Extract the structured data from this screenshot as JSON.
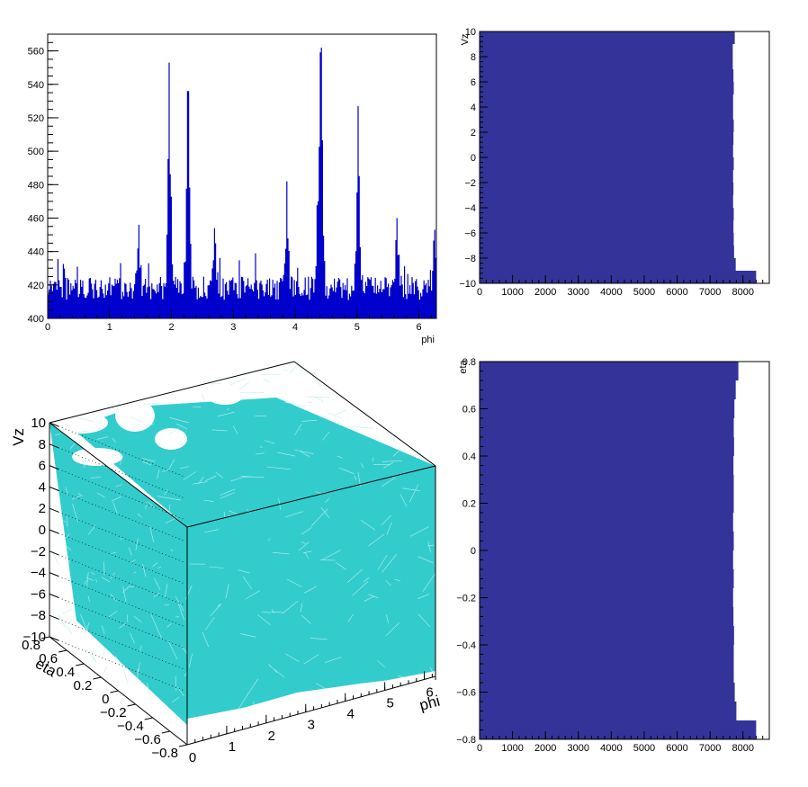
{
  "chart_data": [
    {
      "type": "bar",
      "panel": "top-left",
      "xlabel": "phi",
      "ylabel": "",
      "xlim": [
        0,
        6.283
      ],
      "ylim": [
        400,
        570
      ],
      "xticks": [
        "0",
        "1",
        "2",
        "3",
        "4",
        "5",
        "6"
      ],
      "yticks": [
        "400",
        "420",
        "440",
        "460",
        "480",
        "500",
        "520",
        "540",
        "560"
      ],
      "color": "#0000cc",
      "peaks": [
        {
          "x": 1.97,
          "y": 553
        },
        {
          "x": 2.27,
          "y": 536
        },
        {
          "x": 3.87,
          "y": 482
        },
        {
          "x": 4.42,
          "y": 562
        },
        {
          "x": 4.37,
          "y": 470
        },
        {
          "x": 5.02,
          "y": 527
        },
        {
          "x": 5.65,
          "y": 460
        },
        {
          "x": 6.26,
          "y": 453
        },
        {
          "x": 1.47,
          "y": 456
        },
        {
          "x": 2.7,
          "y": 454
        }
      ],
      "baseline_approx": 418
    },
    {
      "type": "bar",
      "orientation": "horizontal",
      "panel": "top-right",
      "xlabel": "",
      "ylabel": "Vz",
      "xlim": [
        0,
        8800
      ],
      "ylim": [
        -10,
        10
      ],
      "xticks": [
        "0",
        "1000",
        "2000",
        "3000",
        "4000",
        "5000",
        "6000",
        "7000",
        "8000"
      ],
      "yticks": [
        "−10",
        "−8",
        "−6",
        "−4",
        "−2",
        "0",
        "2",
        "4",
        "6",
        "8",
        "10"
      ],
      "color": "#333399",
      "bins_edges": [
        -10,
        -9,
        -8,
        -7,
        -6,
        -5,
        -4,
        -3,
        -2,
        -1,
        0,
        1,
        2,
        3,
        4,
        5,
        6,
        7,
        8,
        9,
        10
      ],
      "values": [
        8400,
        7780,
        7730,
        7720,
        7710,
        7720,
        7700,
        7710,
        7700,
        7720,
        7700,
        7710,
        7720,
        7700,
        7700,
        7720,
        7710,
        7690,
        7690,
        7750
      ]
    },
    {
      "type": "surface",
      "panel": "bottom-left",
      "xlabel": "phi",
      "ylabel": "eta",
      "zlabel": "Vz",
      "xlim": [
        0,
        6.283
      ],
      "ylim": [
        -0.8,
        0.8
      ],
      "zlim": [
        -10,
        10
      ],
      "xticks": [
        "0",
        "1",
        "2",
        "3",
        "4",
        "5",
        "6"
      ],
      "yticks": [
        "−0.8",
        "−0.6",
        "−0.4",
        "−0.2",
        "0",
        "0.2",
        "0.4",
        "0.6",
        "0.8"
      ],
      "zticks": [
        "−10",
        "−8",
        "−6",
        "−4",
        "−2",
        "0",
        "2",
        "4",
        "6",
        "8",
        "10"
      ],
      "color": "#33cccc"
    },
    {
      "type": "bar",
      "orientation": "horizontal",
      "panel": "bottom-right",
      "xlabel": "",
      "ylabel": "eta",
      "xlim": [
        0,
        8800
      ],
      "ylim": [
        -0.8,
        0.8
      ],
      "xticks": [
        "0",
        "1000",
        "2000",
        "3000",
        "4000",
        "5000",
        "6000",
        "7000",
        "8000"
      ],
      "yticks": [
        "−0.8",
        "−0.6",
        "−0.4",
        "−0.2",
        "0",
        "0.2",
        "0.4",
        "0.6",
        "0.8"
      ],
      "color": "#333399",
      "bins_edges": [
        -0.8,
        -0.72,
        -0.64,
        -0.56,
        -0.48,
        -0.4,
        -0.32,
        -0.24,
        -0.16,
        -0.08,
        0,
        0.08,
        0.16,
        0.24,
        0.32,
        0.4,
        0.48,
        0.56,
        0.64,
        0.72,
        0.8
      ],
      "values": [
        8400,
        7800,
        7750,
        7720,
        7720,
        7730,
        7710,
        7700,
        7720,
        7700,
        7720,
        7700,
        7720,
        7720,
        7710,
        7730,
        7720,
        7740,
        7780,
        7860
      ]
    }
  ]
}
